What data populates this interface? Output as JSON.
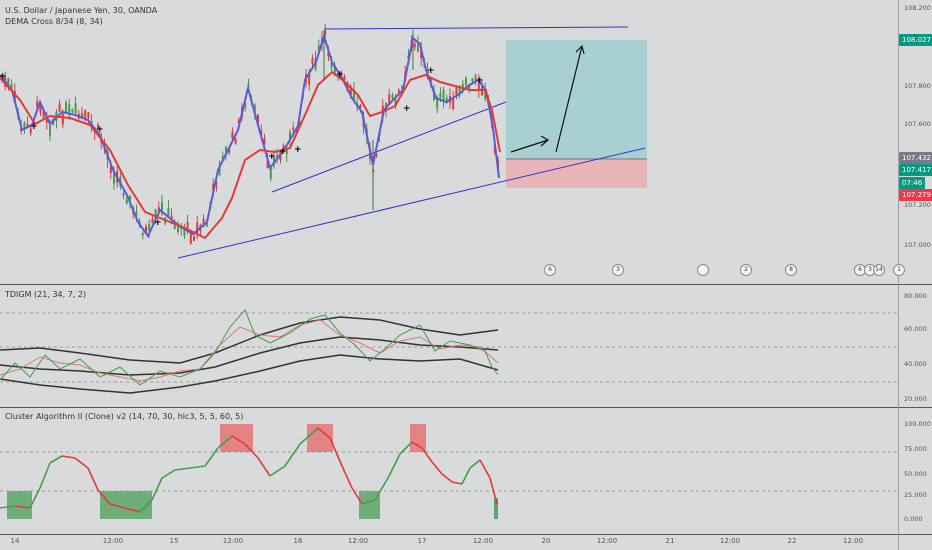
{
  "header": {
    "symbol_title": "U.S. Dollar / Japanese Yen, 30, OANDA",
    "main_indicator": "DEMA Cross 8/34 (8, 34)",
    "tdi_title": "TDIGM (21, 34, 7, 2)",
    "cluster_title": "Cluster Algorithm II (Clone) v2 (14, 70, 30, hlc3, 5, 5, 60, 5)"
  },
  "price_axis": {
    "labels": [
      "108.200",
      "107.800",
      "107.600",
      "107.200",
      "107.000"
    ],
    "tags": [
      {
        "text": "108.027",
        "color": "#089981"
      },
      {
        "text": "107.432",
        "color": "#787b86"
      },
      {
        "text": "107.417",
        "color": "#089981"
      },
      {
        "text": "07:46",
        "color": "#089981"
      },
      {
        "text": "107.279",
        "color": "#f23645"
      }
    ]
  },
  "tdi_axis": [
    "80.000",
    "60.000",
    "40.000",
    "20.000"
  ],
  "cluster_axis": [
    "100.000",
    "75.000",
    "50.000",
    "25.000",
    "0.000"
  ],
  "time_axis": [
    "14",
    "12:00",
    "15",
    "12:00",
    "16",
    "12:00",
    "17",
    "12:00",
    "20",
    "12:00",
    "21",
    "12:00",
    "22",
    "12:00"
  ],
  "events": [
    "6",
    "3",
    "",
    "2",
    "8",
    "6",
    "3",
    "14",
    "1"
  ],
  "colors": {
    "background": "#d9dadc",
    "dema_fast": "#5b5bd6",
    "dema_slow": "#e53935",
    "target_zone": "#a8cfd1",
    "stop_zone": "#e8b4b8",
    "up": "#4caf50",
    "down": "#e53935"
  }
}
